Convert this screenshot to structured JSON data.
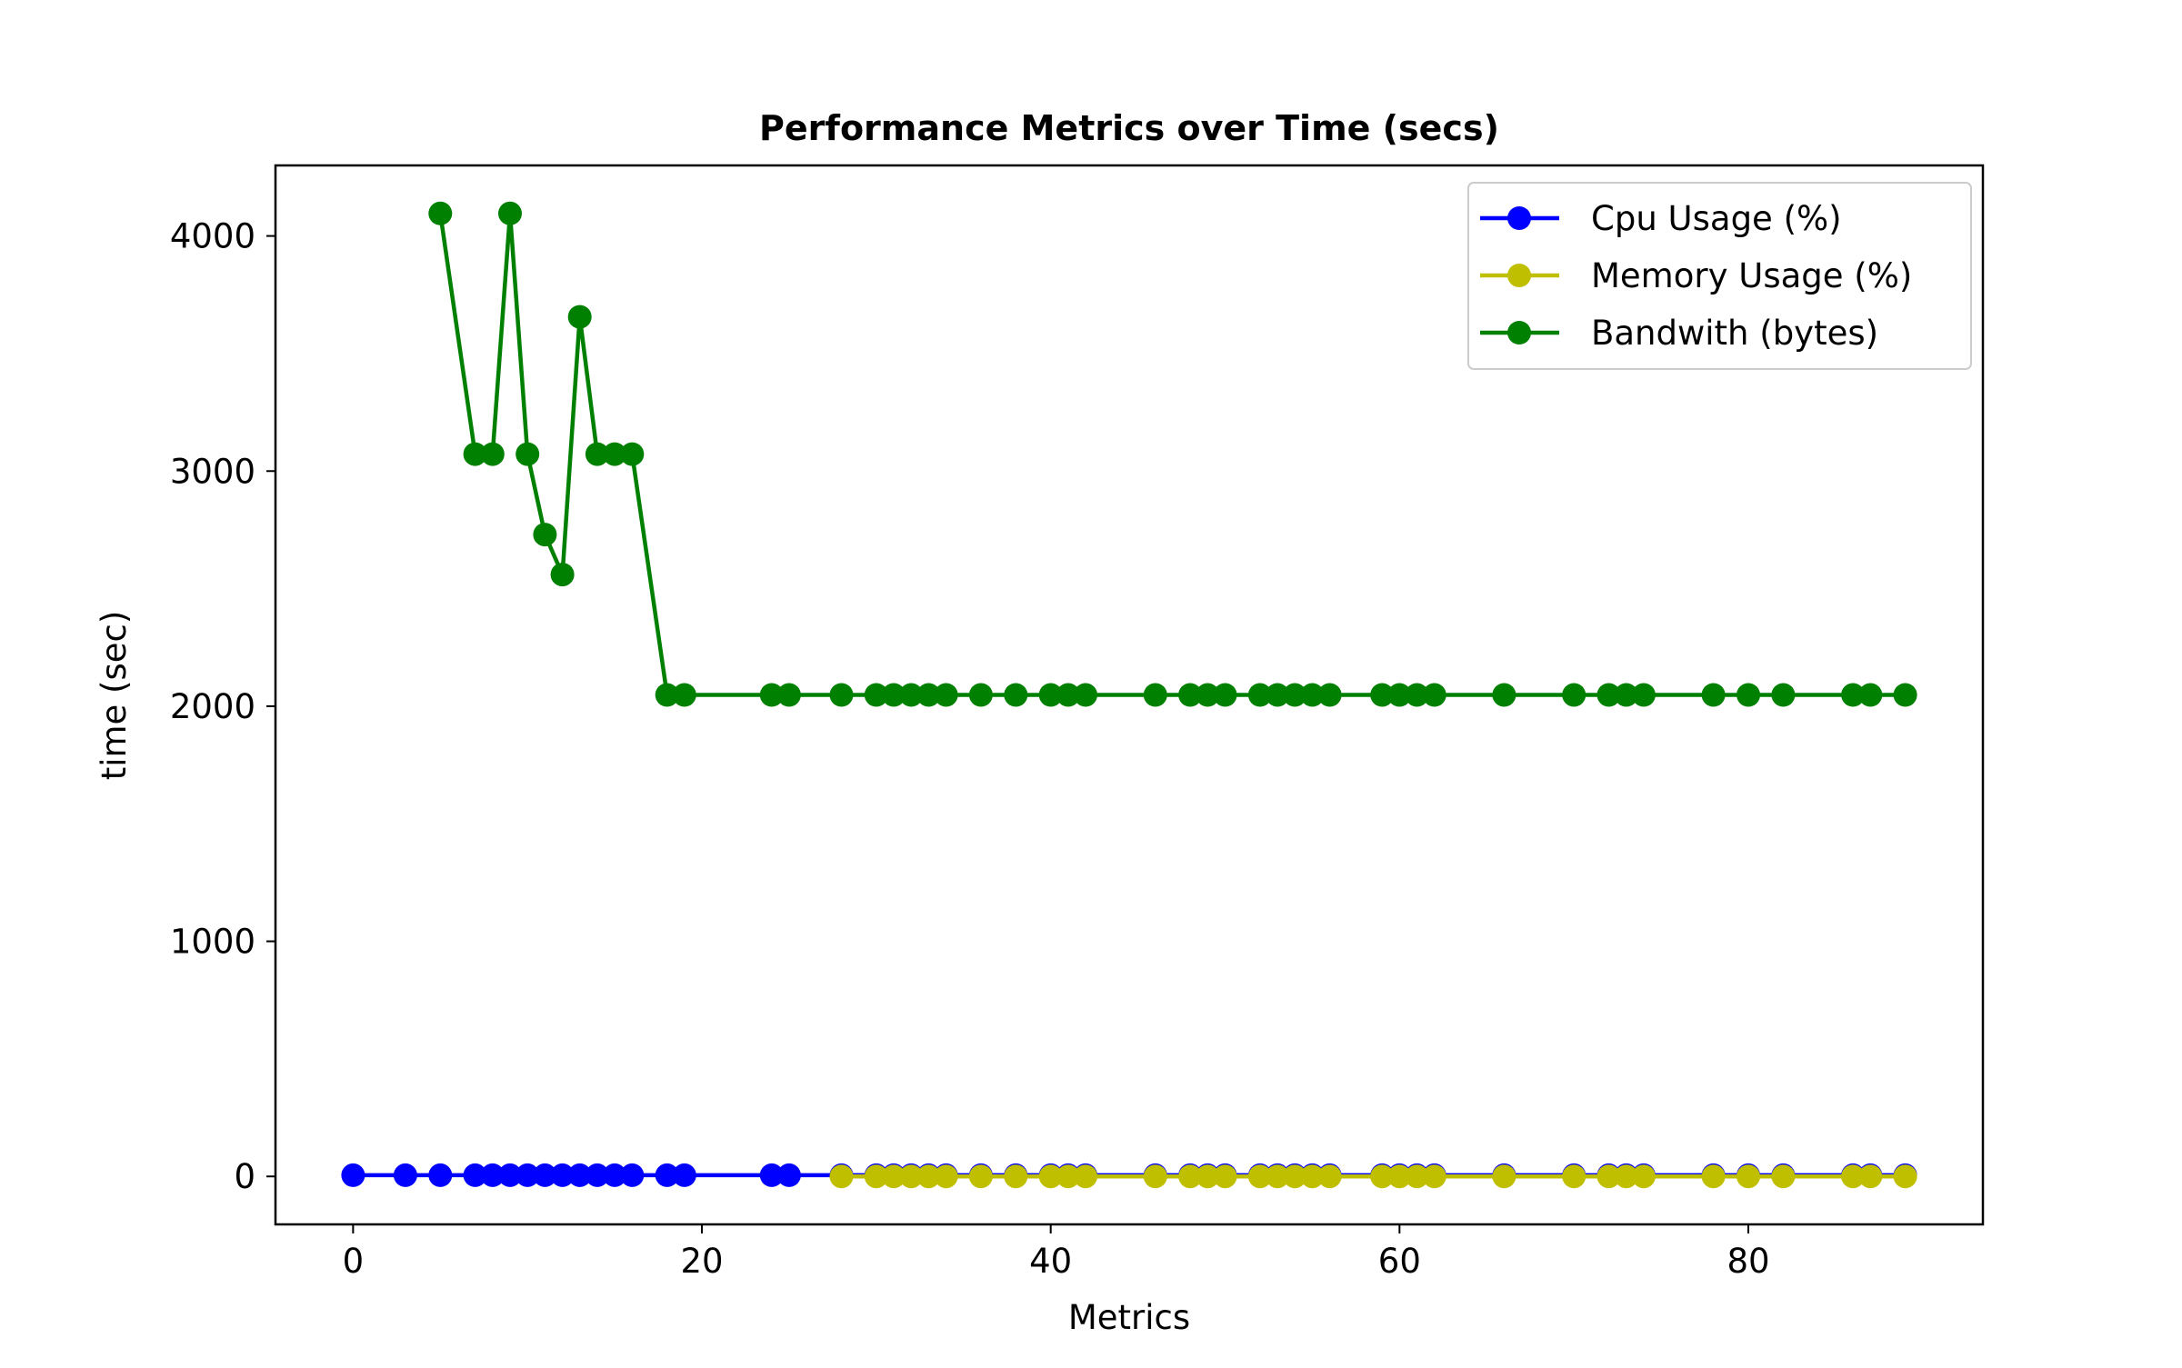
{
  "chart_data": {
    "type": "line",
    "title": "Performance Metrics over Time (secs)",
    "xlabel": "Metrics",
    "ylabel": "time (sec)",
    "xlim": [
      -4.45,
      93.45
    ],
    "ylim": [
      -204,
      4300
    ],
    "xticks": [
      0,
      20,
      40,
      60,
      80
    ],
    "yticks": [
      0,
      1000,
      2000,
      3000,
      4000
    ],
    "legend_position": "top-right",
    "grid": false,
    "series": [
      {
        "name": "Cpu Usage (%)",
        "color": "#0000ff",
        "x": [
          0,
          3,
          5,
          7,
          8,
          9,
          10,
          11,
          12,
          13,
          14,
          15,
          16,
          18,
          19,
          24,
          25,
          28,
          30,
          31,
          32,
          33,
          34,
          36,
          38,
          40,
          41,
          42,
          46,
          48,
          49,
          50,
          52,
          53,
          54,
          55,
          56,
          59,
          60,
          61,
          62,
          66,
          70,
          72,
          73,
          74,
          78,
          80,
          82,
          86,
          87,
          89
        ],
        "values": [
          5,
          5,
          5,
          5,
          5,
          5,
          5,
          5,
          5,
          5,
          5,
          5,
          5,
          5,
          5,
          5,
          5,
          5,
          5,
          5,
          5,
          5,
          5,
          5,
          5,
          5,
          5,
          5,
          5,
          5,
          5,
          5,
          5,
          5,
          5,
          5,
          5,
          5,
          5,
          5,
          5,
          5,
          5,
          5,
          5,
          5,
          5,
          5,
          5,
          5,
          5,
          5
        ]
      },
      {
        "name": "Memory Usage (%)",
        "color": "#bfbf00",
        "x": [
          28,
          30,
          31,
          32,
          33,
          34,
          36,
          38,
          40,
          41,
          42,
          46,
          48,
          49,
          50,
          52,
          53,
          54,
          55,
          56,
          59,
          60,
          61,
          62,
          66,
          70,
          72,
          73,
          74,
          78,
          80,
          82,
          86,
          87,
          89
        ],
        "values": [
          0,
          0,
          0,
          0,
          0,
          0,
          0,
          0,
          0,
          0,
          0,
          0,
          0,
          0,
          0,
          0,
          0,
          0,
          0,
          0,
          0,
          0,
          0,
          0,
          0,
          0,
          0,
          0,
          0,
          0,
          0,
          0,
          0,
          0,
          0
        ]
      },
      {
        "name": "Bandwith (bytes)",
        "color": "#008000",
        "x": [
          5,
          7,
          8,
          9,
          10,
          11,
          12,
          13,
          14,
          15,
          16,
          18,
          19,
          24,
          25,
          28,
          30,
          31,
          32,
          33,
          34,
          36,
          38,
          40,
          41,
          42,
          46,
          48,
          49,
          50,
          52,
          53,
          54,
          55,
          56,
          59,
          60,
          61,
          62,
          66,
          70,
          72,
          73,
          74,
          78,
          80,
          82,
          86,
          87,
          89
        ],
        "values": [
          4096,
          3072,
          3072,
          4096,
          3072,
          2730,
          2560,
          3656,
          3072,
          3072,
          3072,
          2048,
          2048,
          2048,
          2048,
          2048,
          2048,
          2048,
          2048,
          2048,
          2048,
          2048,
          2048,
          2048,
          2048,
          2048,
          2048,
          2048,
          2048,
          2048,
          2048,
          2048,
          2048,
          2048,
          2048,
          2048,
          2048,
          2048,
          2048,
          2048,
          2048,
          2048,
          2048,
          2048,
          2048,
          2048,
          2048,
          2048,
          2048,
          2048
        ]
      }
    ]
  }
}
